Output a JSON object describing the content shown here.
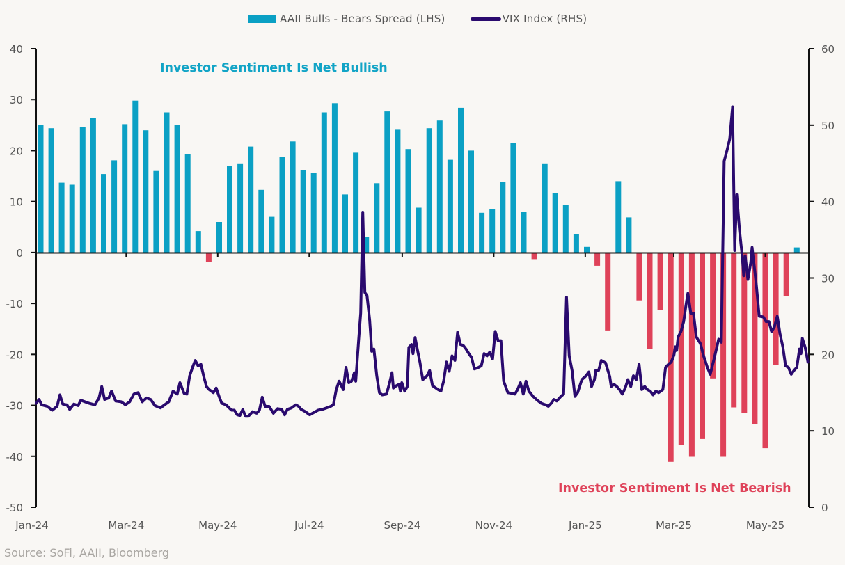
{
  "source": "Source: SoFi, AAII, Bloomberg",
  "annotations": {
    "bullish": "Investor Sentiment Is Net Bullish",
    "bearish": "Investor Sentiment Is Net Bearish"
  },
  "legend": [
    {
      "label": "AAII Bulls - Bears Spread (LHS)",
      "type": "bar",
      "color": "#0ba0c4"
    },
    {
      "label": "VIX Index (RHS)",
      "type": "line",
      "color": "#2a0a6e"
    }
  ],
  "chart_data": {
    "type": "bar+line",
    "title": "",
    "xlabel": "",
    "ylabel_left": "AAII Bulls - Bears Spread",
    "ylabel_right": "VIX Index",
    "ylim_left": [
      -50,
      40
    ],
    "ylim_right": [
      0,
      60
    ],
    "yticks_left": [
      40,
      30,
      20,
      10,
      0,
      -10,
      -20,
      -30,
      -40,
      -50
    ],
    "yticks_right": [
      60,
      50,
      40,
      30,
      20,
      10,
      0
    ],
    "x_unit": "days since 2024-01-01",
    "xlim": [
      0,
      515
    ],
    "x_ticks": [
      {
        "label": "Jan-24",
        "day": 0
      },
      {
        "label": "Mar-24",
        "day": 60
      },
      {
        "label": "May-24",
        "day": 121
      },
      {
        "label": "Jul-24",
        "day": 182
      },
      {
        "label": "Sep-24",
        "day": 244
      },
      {
        "label": "Nov-24",
        "day": 305
      },
      {
        "label": "Jan-25",
        "day": 366
      },
      {
        "label": "Mar-25",
        "day": 425
      },
      {
        "label": "May-25",
        "day": 486
      }
    ],
    "grid": false,
    "legend_position": "top-center",
    "colors": {
      "positive": "#0ba0c4",
      "negative": "#df4259",
      "line": "#2a0a6e"
    },
    "bars": {
      "name": "AAII Bulls - Bears Spread (LHS)",
      "start_day": 3,
      "step_days": 7,
      "values": [
        25.1,
        24.4,
        13.7,
        13.3,
        24.6,
        26.4,
        15.4,
        18.1,
        25.2,
        29.8,
        24.0,
        16.0,
        27.5,
        25.1,
        19.3,
        4.2,
        -1.8,
        6.0,
        17.0,
        17.5,
        20.8,
        12.3,
        7.0,
        18.8,
        21.8,
        16.2,
        15.6,
        27.5,
        29.3,
        11.4,
        19.6,
        3.0,
        13.6,
        27.7,
        24.1,
        20.3,
        8.8,
        24.4,
        25.9,
        18.2,
        28.4,
        20.0,
        7.8,
        8.5,
        13.9,
        21.5,
        8.0,
        -1.3,
        17.5,
        11.6,
        9.3,
        3.6,
        1.1,
        -2.6,
        -15.3,
        14.0,
        6.9,
        -9.4,
        -18.9,
        -11.3,
        -41.1,
        -37.8,
        -40.1,
        -36.6,
        -24.7,
        -40.1,
        -30.4,
        -31.5,
        -33.7,
        -38.4,
        -22.1,
        -8.5,
        1.0
      ]
    },
    "line": {
      "name": "VIX Index (RHS)",
      "points": [
        [
          0,
          13.6
        ],
        [
          1.9,
          14.1
        ],
        [
          3.7,
          13.4
        ],
        [
          7.4,
          13.2
        ],
        [
          10.7,
          12.7
        ],
        [
          13.9,
          13.2
        ],
        [
          15.8,
          14.7
        ],
        [
          17.7,
          13.5
        ],
        [
          20.5,
          13.4
        ],
        [
          22.3,
          12.8
        ],
        [
          25.1,
          13.5
        ],
        [
          27.9,
          13.3
        ],
        [
          29.8,
          14.0
        ],
        [
          32.5,
          13.8
        ],
        [
          35.3,
          13.6
        ],
        [
          39.1,
          13.4
        ],
        [
          41.9,
          14.3
        ],
        [
          43.7,
          15.8
        ],
        [
          45.6,
          14.1
        ],
        [
          48.4,
          14.3
        ],
        [
          50.2,
          15.2
        ],
        [
          53.0,
          13.9
        ],
        [
          56.7,
          13.8
        ],
        [
          59.5,
          13.4
        ],
        [
          62.3,
          13.8
        ],
        [
          65.1,
          14.8
        ],
        [
          67.9,
          15.0
        ],
        [
          70.7,
          13.8
        ],
        [
          73.5,
          14.3
        ],
        [
          76.3,
          14.1
        ],
        [
          79.1,
          13.3
        ],
        [
          82.8,
          13.0
        ],
        [
          85.6,
          13.4
        ],
        [
          88.4,
          13.8
        ],
        [
          91.2,
          15.2
        ],
        [
          94.0,
          14.8
        ],
        [
          95.8,
          16.3
        ],
        [
          98.6,
          14.9
        ],
        [
          100.4,
          14.8
        ],
        [
          102.3,
          17.2
        ],
        [
          104.2,
          18.3
        ],
        [
          106.0,
          19.2
        ],
        [
          107.9,
          18.5
        ],
        [
          109.8,
          18.7
        ],
        [
          111.6,
          17.2
        ],
        [
          113.5,
          15.8
        ],
        [
          115.3,
          15.4
        ],
        [
          118.1,
          15.0
        ],
        [
          120.0,
          15.6
        ],
        [
          121.9,
          14.5
        ],
        [
          123.7,
          13.6
        ],
        [
          126.5,
          13.4
        ],
        [
          130.2,
          12.7
        ],
        [
          132.1,
          12.7
        ],
        [
          134.0,
          12.1
        ],
        [
          135.8,
          12.0
        ],
        [
          137.7,
          12.8
        ],
        [
          139.5,
          11.9
        ],
        [
          141.4,
          11.9
        ],
        [
          144.2,
          12.5
        ],
        [
          147.0,
          12.3
        ],
        [
          148.8,
          12.7
        ],
        [
          150.7,
          14.4
        ],
        [
          152.6,
          13.2
        ],
        [
          155.3,
          13.2
        ],
        [
          158.1,
          12.3
        ],
        [
          160.9,
          12.9
        ],
        [
          163.7,
          12.8
        ],
        [
          165.6,
          12.1
        ],
        [
          167.4,
          12.8
        ],
        [
          170.2,
          13.0
        ],
        [
          173.0,
          13.4
        ],
        [
          174.9,
          13.2
        ],
        [
          176.7,
          12.8
        ],
        [
          179.5,
          12.5
        ],
        [
          182.3,
          12.1
        ],
        [
          184.2,
          12.3
        ],
        [
          187.9,
          12.7
        ],
        [
          190.7,
          12.8
        ],
        [
          193.5,
          13.0
        ],
        [
          196.3,
          13.2
        ],
        [
          198.1,
          13.4
        ],
        [
          200.0,
          15.4
        ],
        [
          201.9,
          16.5
        ],
        [
          203.7,
          15.8
        ],
        [
          204.7,
          15.4
        ],
        [
          206.5,
          18.3
        ],
        [
          208.4,
          16.3
        ],
        [
          210.2,
          16.5
        ],
        [
          212.1,
          17.6
        ],
        [
          213.0,
          16.5
        ],
        [
          214.9,
          21.8
        ],
        [
          216.3,
          25.4
        ],
        [
          217.7,
          38.6
        ],
        [
          219.1,
          28.1
        ],
        [
          220.5,
          27.7
        ],
        [
          222.3,
          24.5
        ],
        [
          223.7,
          20.4
        ],
        [
          225.1,
          20.7
        ],
        [
          227.0,
          17.2
        ],
        [
          228.8,
          15.0
        ],
        [
          230.7,
          14.7
        ],
        [
          233.5,
          14.8
        ],
        [
          235.3,
          16.1
        ],
        [
          237.2,
          17.6
        ],
        [
          238.1,
          15.6
        ],
        [
          240.0,
          15.9
        ],
        [
          241.9,
          16.1
        ],
        [
          242.8,
          15.2
        ],
        [
          243.7,
          16.3
        ],
        [
          245.6,
          15.2
        ],
        [
          247.4,
          15.8
        ],
        [
          248.4,
          20.9
        ],
        [
          250.2,
          21.3
        ],
        [
          251.2,
          20.1
        ],
        [
          252.6,
          22.2
        ],
        [
          254.0,
          20.7
        ],
        [
          255.8,
          19.0
        ],
        [
          257.7,
          16.7
        ],
        [
          260.5,
          17.2
        ],
        [
          262.3,
          17.9
        ],
        [
          264.2,
          15.9
        ],
        [
          267.9,
          15.4
        ],
        [
          269.8,
          15.2
        ],
        [
          271.6,
          16.5
        ],
        [
          273.5,
          19.0
        ],
        [
          275.3,
          17.8
        ],
        [
          277.2,
          19.8
        ],
        [
          279.1,
          19.2
        ],
        [
          280.9,
          22.9
        ],
        [
          282.8,
          21.3
        ],
        [
          284.6,
          21.2
        ],
        [
          286.5,
          20.7
        ],
        [
          288.4,
          20.1
        ],
        [
          290.2,
          19.6
        ],
        [
          292.1,
          18.1
        ],
        [
          294.9,
          18.3
        ],
        [
          296.7,
          18.5
        ],
        [
          298.6,
          20.1
        ],
        [
          300.5,
          19.8
        ],
        [
          302.3,
          20.3
        ],
        [
          304.2,
          19.4
        ],
        [
          306.0,
          23.0
        ],
        [
          307.9,
          21.8
        ],
        [
          309.8,
          21.8
        ],
        [
          311.6,
          16.5
        ],
        [
          314.4,
          15.0
        ],
        [
          317.2,
          14.9
        ],
        [
          319.1,
          14.8
        ],
        [
          320.9,
          15.4
        ],
        [
          322.8,
          16.3
        ],
        [
          324.7,
          14.8
        ],
        [
          326.5,
          16.5
        ],
        [
          328.4,
          15.2
        ],
        [
          331.2,
          14.5
        ],
        [
          334.0,
          14.0
        ],
        [
          336.7,
          13.6
        ],
        [
          339.5,
          13.4
        ],
        [
          341.4,
          13.2
        ],
        [
          343.3,
          13.6
        ],
        [
          345.1,
          14.1
        ],
        [
          347.0,
          13.9
        ],
        [
          349.8,
          14.5
        ],
        [
          351.6,
          14.8
        ],
        [
          353.5,
          27.5
        ],
        [
          355.3,
          19.8
        ],
        [
          357.2,
          17.9
        ],
        [
          359.1,
          14.5
        ],
        [
          360.9,
          15.0
        ],
        [
          363.7,
          16.7
        ],
        [
          366.5,
          17.2
        ],
        [
          368.4,
          17.7
        ],
        [
          370.2,
          15.8
        ],
        [
          372.1,
          16.7
        ],
        [
          373.0,
          17.9
        ],
        [
          374.9,
          17.9
        ],
        [
          376.7,
          19.2
        ],
        [
          379.5,
          18.9
        ],
        [
          382.3,
          17.1
        ],
        [
          383.3,
          15.8
        ],
        [
          385.1,
          16.1
        ],
        [
          387.0,
          15.8
        ],
        [
          388.8,
          15.4
        ],
        [
          390.7,
          14.8
        ],
        [
          392.6,
          15.6
        ],
        [
          394.4,
          16.7
        ],
        [
          396.3,
          15.8
        ],
        [
          398.1,
          17.2
        ],
        [
          400.0,
          16.7
        ],
        [
          401.9,
          18.7
        ],
        [
          403.7,
          15.4
        ],
        [
          405.6,
          15.8
        ],
        [
          407.4,
          15.4
        ],
        [
          409.3,
          15.2
        ],
        [
          411.2,
          14.7
        ],
        [
          413.0,
          15.2
        ],
        [
          414.9,
          15.0
        ],
        [
          417.7,
          15.4
        ],
        [
          419.5,
          18.3
        ],
        [
          421.4,
          18.7
        ],
        [
          423.3,
          19.0
        ],
        [
          425.1,
          19.9
        ],
        [
          426.0,
          21.0
        ],
        [
          426.9,
          20.5
        ],
        [
          427.9,
          22.3
        ],
        [
          429.8,
          23.0
        ],
        [
          431.6,
          24.3
        ],
        [
          433.0,
          26.3
        ],
        [
          434.4,
          28.0
        ],
        [
          436.3,
          25.4
        ],
        [
          438.1,
          25.4
        ],
        [
          440.0,
          22.3
        ],
        [
          442.8,
          21.4
        ],
        [
          444.7,
          19.9
        ],
        [
          447.4,
          18.3
        ],
        [
          449.3,
          17.4
        ],
        [
          452.1,
          19.6
        ],
        [
          454.9,
          22.0
        ],
        [
          456.7,
          21.6
        ],
        [
          458.6,
          45.3
        ],
        [
          460.5,
          46.7
        ],
        [
          462.3,
          48.2
        ],
        [
          464.2,
          52.4
        ],
        [
          465.6,
          33.6
        ],
        [
          467.0,
          40.9
        ],
        [
          468.8,
          36.3
        ],
        [
          470.7,
          32.7
        ],
        [
          471.6,
          30.3
        ],
        [
          472.6,
          32.9
        ],
        [
          474.4,
          29.8
        ],
        [
          476.3,
          32.0
        ],
        [
          477.2,
          34.0
        ],
        [
          480.0,
          29.1
        ],
        [
          481.9,
          25.0
        ],
        [
          484.7,
          24.9
        ],
        [
          486.5,
          24.3
        ],
        [
          488.4,
          24.3
        ],
        [
          490.2,
          23.0
        ],
        [
          492.1,
          23.6
        ],
        [
          494.0,
          25.0
        ],
        [
          495.8,
          22.7
        ],
        [
          497.7,
          21.0
        ],
        [
          499.5,
          18.5
        ],
        [
          501.4,
          18.3
        ],
        [
          503.3,
          17.4
        ],
        [
          505.1,
          17.9
        ],
        [
          507.0,
          18.3
        ],
        [
          508.8,
          20.7
        ],
        [
          509.8,
          20.1
        ],
        [
          510.7,
          22.1
        ],
        [
          512.6,
          20.9
        ],
        [
          514.4,
          19.0
        ]
      ]
    }
  }
}
